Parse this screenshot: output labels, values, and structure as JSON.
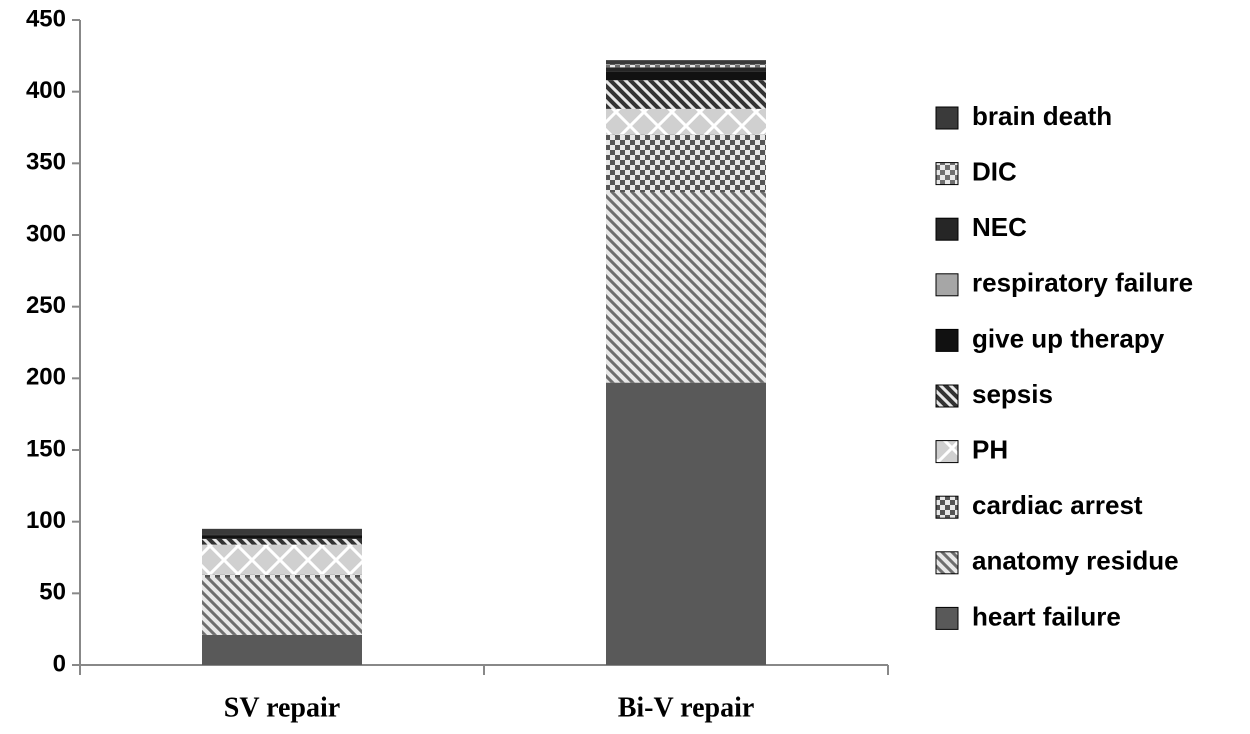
{
  "chart_data": {
    "type": "stacked-bar",
    "categories": [
      "SV repair",
      "Bi-V repair"
    ],
    "series": [
      {
        "name": "heart failure",
        "color": "#595959",
        "values": [
          21,
          197
        ]
      },
      {
        "name": "anatomy residue",
        "color": "#6e6e6e",
        "values": [
          40,
          133
        ]
      },
      {
        "name": "cardiac arrest",
        "color": "#555555",
        "values": [
          2,
          40
        ]
      },
      {
        "name": "PH",
        "color": "#d0d0d0",
        "values": [
          21,
          18
        ]
      },
      {
        "name": "sepsis",
        "color": "#333333",
        "values": [
          4,
          20
        ]
      },
      {
        "name": "give up therapy",
        "color": "#111111",
        "values": [
          2,
          6
        ]
      },
      {
        "name": "respiratory failure",
        "color": "#a6a6a6",
        "values": [
          0,
          0
        ]
      },
      {
        "name": "NEC",
        "color": "#262626",
        "values": [
          1,
          3
        ]
      },
      {
        "name": "DIC",
        "color": "#707070",
        "values": [
          0,
          2
        ]
      },
      {
        "name": "brain death",
        "color": "#3a3a3a",
        "values": [
          4,
          3
        ]
      }
    ],
    "ylim": [
      0,
      450
    ],
    "yticks": [
      0,
      50,
      100,
      150,
      200,
      250,
      300,
      350,
      400,
      450
    ]
  }
}
